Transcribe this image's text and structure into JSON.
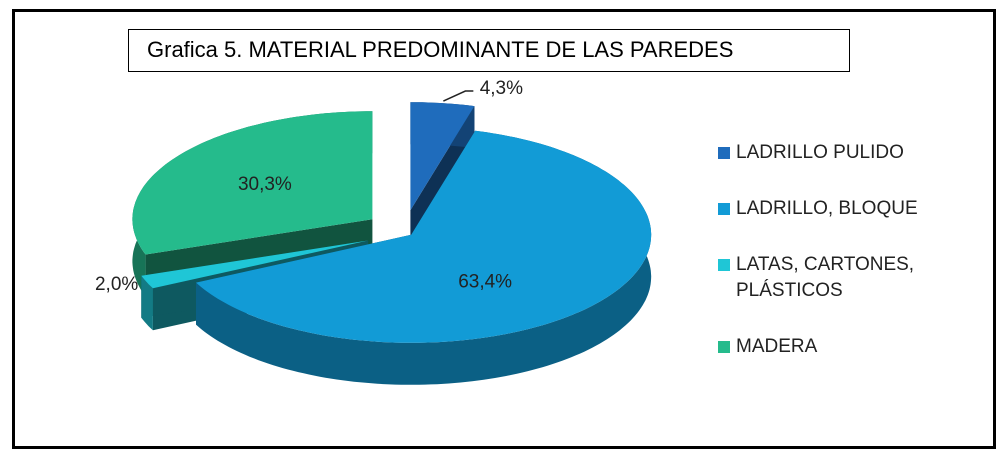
{
  "chart_data": {
    "type": "pie3d",
    "title": "Grafica 5. MATERIAL PREDOMINANTE DE LAS PAREDES",
    "categories": [
      "LADRILLO PULIDO",
      "LADRILLO, BLOQUE",
      "LATAS, CARTONES, PLÁSTICOS",
      "MADERA"
    ],
    "values": [
      4.3,
      63.4,
      2.0,
      30.3
    ],
    "value_labels": [
      "4,3%",
      "63,4%",
      "2,0%",
      "30,3%"
    ],
    "colors": [
      "#1f6cbc",
      "#129bd6",
      "#1fc6d6",
      "#25bb8c"
    ],
    "legend": "right"
  }
}
